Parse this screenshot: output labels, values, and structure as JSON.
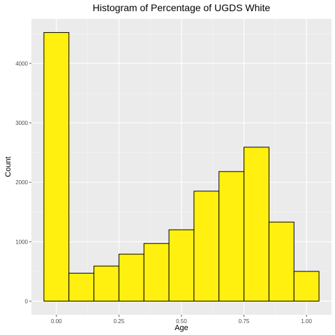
{
  "chart_data": {
    "type": "bar",
    "title": "Histogram of Percentage of UGDS White",
    "xlabel": "Age",
    "ylabel": "Count",
    "bar_color": "#FFF00F",
    "panel_color": "#EBEBEB",
    "bins": [
      {
        "start": -0.05,
        "end": 0.05,
        "count": 4520
      },
      {
        "start": 0.05,
        "end": 0.15,
        "count": 470
      },
      {
        "start": 0.15,
        "end": 0.25,
        "count": 590
      },
      {
        "start": 0.25,
        "end": 0.35,
        "count": 790
      },
      {
        "start": 0.35,
        "end": 0.45,
        "count": 970
      },
      {
        "start": 0.45,
        "end": 0.55,
        "count": 1200
      },
      {
        "start": 0.55,
        "end": 0.65,
        "count": 1850
      },
      {
        "start": 0.65,
        "end": 0.75,
        "count": 2180
      },
      {
        "start": 0.75,
        "end": 0.85,
        "count": 2590
      },
      {
        "start": 0.85,
        "end": 0.95,
        "count": 1330
      },
      {
        "start": 0.95,
        "end": 1.05,
        "count": 500
      }
    ],
    "xlim": [
      -0.1,
      1.1
    ],
    "ylim": [
      -230,
      4750
    ],
    "x_ticks": [
      0.0,
      0.25,
      0.5,
      0.75,
      1.0
    ],
    "x_tick_labels": [
      "0.00",
      "0.25",
      "0.50",
      "0.75",
      "1.00"
    ],
    "y_ticks": [
      0,
      1000,
      2000,
      3000,
      4000
    ],
    "y_tick_labels": [
      "0",
      "1000",
      "2000",
      "3000",
      "4000"
    ],
    "grid": true,
    "legend": "none"
  }
}
